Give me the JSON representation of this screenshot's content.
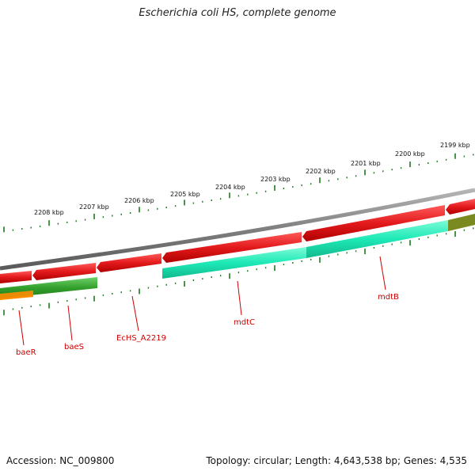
{
  "title": "Escherichia coli HS, complete genome",
  "footer": {
    "accession": "Accession: NC_009800",
    "summary": "Topology: circular; Length: 4,643,538 bp; Genes: 4,535"
  },
  "scale_labels": [
    "2208 kbp",
    "2207 kbp",
    "2206 kbp",
    "2205 kbp",
    "2204 kbp",
    "2203 kbp",
    "2202 kbp",
    "2201 kbp",
    "2200 kbp",
    "2199 kbp"
  ],
  "genes": [
    "baeR",
    "baeS",
    "EcHS_A2219",
    "mdtC",
    "mdtB"
  ],
  "colors": {
    "backbone": "#8a8a8a",
    "cds_forward": "#e31a1c",
    "mdt_teal": "#1de9b6",
    "bae_green": "#33a02c",
    "baeR_orange": "#ff8c00",
    "olive": "#7a8a20",
    "tick_green": "#1b7a1b",
    "label_red": "#cc0000"
  }
}
